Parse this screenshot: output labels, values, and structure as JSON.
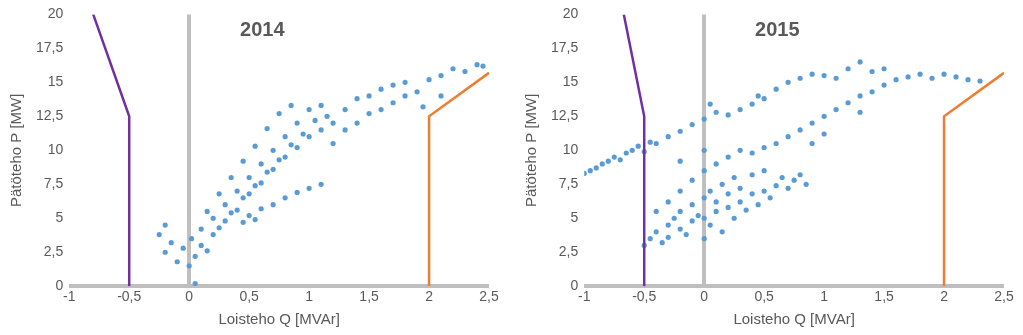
{
  "chart_data": [
    {
      "type": "scatter",
      "title": "2014",
      "x_label": "Loisteho Q [MVAr]",
      "y_label": "Pätöteho P [MW]",
      "xlim": [
        -1,
        2.5
      ],
      "xticks": [
        -1,
        {
          "value": -0.5,
          "label": "-0,5"
        },
        0,
        {
          "value": 0.5,
          "label": "0,5"
        },
        1,
        {
          "value": 1.5,
          "label": "1,5"
        },
        2,
        {
          "value": 2.5,
          "label": "2,5"
        }
      ],
      "ylim": [
        0,
        20
      ],
      "yticks": [
        0,
        {
          "value": 2.5,
          "label": "2,5"
        },
        5,
        {
          "value": 7.5,
          "label": "7,5"
        },
        10,
        {
          "value": 12.5,
          "label": "12,5"
        },
        15,
        {
          "value": 17.5,
          "label": "17,5"
        },
        20
      ],
      "grid": false,
      "series": [
        {
          "type": "scatter",
          "marker": "circle",
          "color": "#5b9bd5",
          "x": [
            -0.2,
            -0.15,
            -0.1,
            -0.05,
            0,
            0.02,
            0.05,
            0.1,
            0.1,
            0.15,
            0.2,
            0.2,
            0.25,
            0.3,
            0.3,
            0.35,
            0.4,
            0.4,
            0.45,
            0.5,
            0.5,
            0.55,
            0.6,
            0.6,
            0.65,
            0.7,
            0.7,
            0.75,
            0.8,
            0.8,
            0.85,
            0.9,
            0.9,
            0.95,
            1.0,
            1.0,
            1.05,
            1.1,
            1.1,
            1.15,
            1.2,
            -0.25,
            -0.2,
            0.15,
            0.25,
            0.35,
            0.45,
            0.55,
            0.65,
            0.75,
            0.85,
            0.5,
            0.6,
            0.7,
            0.8,
            0.9,
            1.0,
            1.1,
            0.45,
            0.55,
            1.2,
            1.3,
            1.4,
            1.5,
            1.6,
            1.7,
            1.8,
            1.9,
            1.3,
            1.4,
            1.5,
            1.6,
            1.7,
            1.8,
            2.0,
            2.1,
            2.2,
            2.3,
            2.4,
            2.45,
            1.95,
            2.1,
            0.05
          ],
          "values": [
            2.5,
            3.2,
            1.8,
            2.8,
            1.5,
            3.5,
            2.2,
            4.2,
            3,
            2.6,
            5,
            3.8,
            4.3,
            6,
            4.8,
            5.4,
            7,
            5.6,
            6.5,
            8,
            6.8,
            7.4,
            9,
            7.6,
            8.4,
            10,
            8.6,
            9.3,
            11,
            9.5,
            10.4,
            12,
            10.2,
            11.2,
            13,
            11,
            12.2,
            13.3,
            11.5,
            12.5,
            12,
            3.8,
            4.5,
            5.5,
            6.8,
            8,
            9.2,
            10.3,
            11.6,
            12.7,
            13.3,
            5.2,
            5.7,
            6,
            6.5,
            6.9,
            7.2,
            7.5,
            4.7,
            4.9,
            10.5,
            11.5,
            12,
            12.7,
            13,
            13.5,
            14,
            14.3,
            13,
            13.8,
            14,
            14.5,
            14.8,
            15,
            15.2,
            15.5,
            16,
            15.8,
            16.3,
            16.2,
            13.2,
            14,
            0.2
          ]
        },
        {
          "type": "line",
          "color": "#7030a0",
          "x": [
            -0.8,
            -0.5,
            -0.5
          ],
          "values": [
            20,
            12.5,
            0
          ]
        },
        {
          "type": "line",
          "color": "#ed7d31",
          "x": [
            2,
            2,
            2.5
          ],
          "values": [
            0,
            12.5,
            15.7
          ]
        }
      ]
    },
    {
      "type": "scatter",
      "title": "2015",
      "x_label": "Loisteho Q [MVAr]",
      "y_label": "Pätöteho P [MW]",
      "xlim": [
        -1,
        2.5
      ],
      "xticks": [
        -1,
        {
          "value": -0.5,
          "label": "-0,5"
        },
        0,
        {
          "value": 0.5,
          "label": "0,5"
        },
        1,
        {
          "value": 1.5,
          "label": "1,5"
        },
        2,
        {
          "value": 2.5,
          "label": "2,5"
        }
      ],
      "ylim": [
        0,
        20
      ],
      "yticks": [
        0,
        {
          "value": 2.5,
          "label": "2,5"
        },
        5,
        {
          "value": 7.5,
          "label": "7,5"
        },
        10,
        {
          "value": 12.5,
          "label": "12,5"
        },
        15,
        {
          "value": 17.5,
          "label": "17,5"
        },
        20
      ],
      "grid": false,
      "series": [
        {
          "type": "scatter",
          "marker": "circle",
          "color": "#5b9bd5",
          "x": [
            -0.5,
            -0.45,
            -0.4,
            -0.35,
            -0.3,
            -0.3,
            -0.25,
            -0.2,
            -0.2,
            -0.15,
            -0.1,
            -0.1,
            -0.05,
            0,
            0,
            0,
            0.05,
            0.05,
            0.1,
            0.1,
            0.15,
            0.15,
            0.2,
            0.2,
            0.25,
            0.25,
            0.3,
            0.3,
            0.35,
            0.4,
            0.4,
            0.45,
            0.5,
            0.5,
            0.55,
            0.6,
            0.65,
            0.7,
            0.75,
            0.8,
            0.85,
            -0.4,
            -0.3,
            -0.2,
            -0.1,
            0,
            0.1,
            -1,
            -0.95,
            -0.9,
            -0.85,
            -0.8,
            -0.75,
            -0.7,
            -0.65,
            -0.6,
            -0.55,
            -0.5,
            -0.45,
            -0.4,
            -0.3,
            -0.2,
            -0.1,
            0,
            0.05,
            0.1,
            0.2,
            0.3,
            0.4,
            0.45,
            0.5,
            0.6,
            0.7,
            0.8,
            0.9,
            1.0,
            1.1,
            1.2,
            1.3,
            1.4,
            1.5,
            1.6,
            1.7,
            1.8,
            1.9,
            2.0,
            2.1,
            2.2,
            2.3,
            0.5,
            0.6,
            0.7,
            0.8,
            0.9,
            1.0,
            1.1,
            1.2,
            1.3,
            1.4,
            1.5,
            1.3,
            1.0,
            0.9,
            0.2,
            0.3,
            0.4,
            0,
            -0.2
          ],
          "values": [
            3,
            3.5,
            4,
            3.2,
            4.5,
            3.6,
            5,
            4.2,
            5.5,
            3.8,
            4.8,
            6,
            5.2,
            3.5,
            6.5,
            5,
            4.5,
            7,
            5.5,
            6.2,
            4,
            7.5,
            5.8,
            6.8,
            5,
            8,
            6.2,
            7.2,
            5.6,
            6.8,
            8.2,
            6,
            7,
            8.5,
            6.5,
            7.4,
            8,
            7.2,
            7.8,
            8.2,
            7.5,
            5.5,
            6.2,
            7,
            7.8,
            8.5,
            9,
            8.3,
            8.5,
            8.7,
            9,
            9.2,
            9.5,
            9.3,
            9.8,
            10,
            10.3,
            9.9,
            10.6,
            10.5,
            11,
            11.4,
            11.9,
            12.3,
            13.4,
            12.8,
            12.6,
            13,
            13.4,
            14,
            13.8,
            14.5,
            15,
            15.3,
            15.6,
            15.5,
            15.3,
            16,
            16.5,
            15.8,
            16,
            15.2,
            15.4,
            15.6,
            15.3,
            15.6,
            15.4,
            15.2,
            15.1,
            10.2,
            10.5,
            11,
            11.5,
            12,
            12.5,
            13,
            13.5,
            14,
            14.3,
            14.8,
            12.8,
            11.2,
            10.5,
            9.5,
            10,
            9.8,
            10,
            9.2
          ]
        },
        {
          "type": "line",
          "color": "#7030a0",
          "x": [
            -0.67,
            -0.5,
            -0.5
          ],
          "values": [
            20,
            12.5,
            0
          ]
        },
        {
          "type": "line",
          "color": "#ed7d31",
          "x": [
            2,
            2,
            2.5
          ],
          "values": [
            0,
            12.5,
            15.7
          ]
        }
      ]
    }
  ]
}
